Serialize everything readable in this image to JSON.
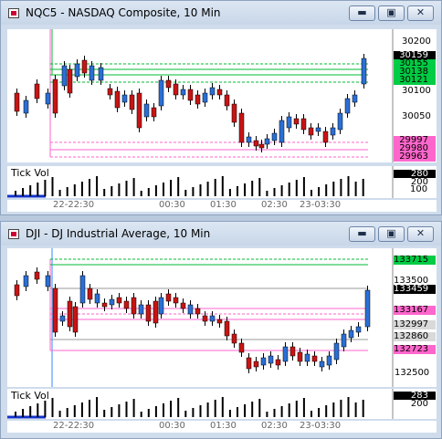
{
  "windows": [
    {
      "title": "NQC5 - NASDAQ Composite, 10 Min",
      "y_ticks": [
        "30200",
        "30100",
        "30050"
      ],
      "tags": [
        {
          "text": "30159",
          "bg": "#000000",
          "fg": "#ffffff"
        },
        {
          "text": "30155",
          "bg": "#00cc44",
          "fg": "#000000"
        },
        {
          "text": "30138",
          "bg": "#00cc44",
          "fg": "#000000"
        },
        {
          "text": "30121",
          "bg": "#00cc44",
          "fg": "#000000"
        },
        {
          "text": "29997",
          "bg": "#ff66cc",
          "fg": "#000000"
        },
        {
          "text": "29980",
          "bg": "#ff66cc",
          "fg": "#000000"
        },
        {
          "text": "29963",
          "bg": "#ff66cc",
          "fg": "#000000"
        }
      ],
      "vol_title": "Tick Vol",
      "vol_tags": [
        {
          "text": "280",
          "bg": "#000000",
          "fg": "#ffffff"
        },
        {
          "text": "200",
          "bg": "#ffffff",
          "fg": "#000000"
        }
      ],
      "vol_tick": "100",
      "time_labels": [
        "22-22:30",
        "00:30",
        "01:30",
        "02:30",
        "23-03:30"
      ]
    },
    {
      "title": "DJI - DJ Industrial Average, 10 Min",
      "y_ticks": [
        "132500"
      ],
      "tags": [
        {
          "text": "133715",
          "bg": "#00cc44",
          "fg": "#000000"
        },
        {
          "text": "133500",
          "bg": "#ffffff",
          "fg": "#000000"
        },
        {
          "text": "133459",
          "bg": "#000000",
          "fg": "#ffffff"
        },
        {
          "text": "133167",
          "bg": "#ff66cc",
          "fg": "#000000"
        },
        {
          "text": "132997",
          "bg": "#d9d9d9",
          "fg": "#000000"
        },
        {
          "text": "132860",
          "bg": "#d9d9d9",
          "fg": "#000000"
        },
        {
          "text": "132723",
          "bg": "#ff66cc",
          "fg": "#000000"
        }
      ],
      "vol_title": "Tick Vol",
      "vol_tags": [
        {
          "text": "283",
          "bg": "#000000",
          "fg": "#ffffff"
        },
        {
          "text": "200",
          "bg": "#ffffff",
          "fg": "#000000"
        }
      ],
      "time_labels": [
        "22-22:30",
        "00:30",
        "01:30",
        "02:30",
        "23-03:30"
      ]
    }
  ],
  "colors": {
    "up": "#2a6fd6",
    "down": "#c81414",
    "green_line": "#00bb33",
    "pink_line": "#ff66cc",
    "grey_line": "#999999"
  }
}
